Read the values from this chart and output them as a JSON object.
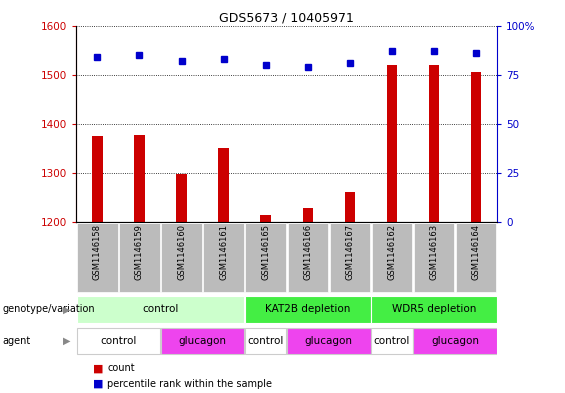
{
  "title": "GDS5673 / 10405971",
  "samples": [
    "GSM1146158",
    "GSM1146159",
    "GSM1146160",
    "GSM1146161",
    "GSM1146165",
    "GSM1146166",
    "GSM1146167",
    "GSM1146162",
    "GSM1146163",
    "GSM1146164"
  ],
  "counts": [
    1375,
    1378,
    1298,
    1350,
    1215,
    1228,
    1262,
    1520,
    1520,
    1505
  ],
  "percentiles": [
    84,
    85,
    82,
    83,
    80,
    79,
    81,
    87,
    87,
    86
  ],
  "ylim_left": [
    1200,
    1600
  ],
  "ylim_right": [
    0,
    100
  ],
  "yticks_left": [
    1200,
    1300,
    1400,
    1500,
    1600
  ],
  "yticks_right": [
    0,
    25,
    50,
    75,
    100
  ],
  "bar_color": "#cc0000",
  "dot_color": "#0000cc",
  "sample_bg": "#bbbbbb",
  "genotype_groups": [
    {
      "label": "control",
      "start": 0,
      "end": 4,
      "color": "#ccffcc"
    },
    {
      "label": "KAT2B depletion",
      "start": 4,
      "end": 7,
      "color": "#44ee44"
    },
    {
      "label": "WDR5 depletion",
      "start": 7,
      "end": 10,
      "color": "#44ee44"
    }
  ],
  "agent_groups": [
    {
      "label": "control",
      "start": 0,
      "end": 2,
      "color": "#ffffff"
    },
    {
      "label": "glucagon",
      "start": 2,
      "end": 4,
      "color": "#ee44ee"
    },
    {
      "label": "control",
      "start": 4,
      "end": 5,
      "color": "#ffffff"
    },
    {
      "label": "glucagon",
      "start": 5,
      "end": 7,
      "color": "#ee44ee"
    },
    {
      "label": "control",
      "start": 7,
      "end": 8,
      "color": "#ffffff"
    },
    {
      "label": "glucagon",
      "start": 8,
      "end": 10,
      "color": "#ee44ee"
    }
  ]
}
